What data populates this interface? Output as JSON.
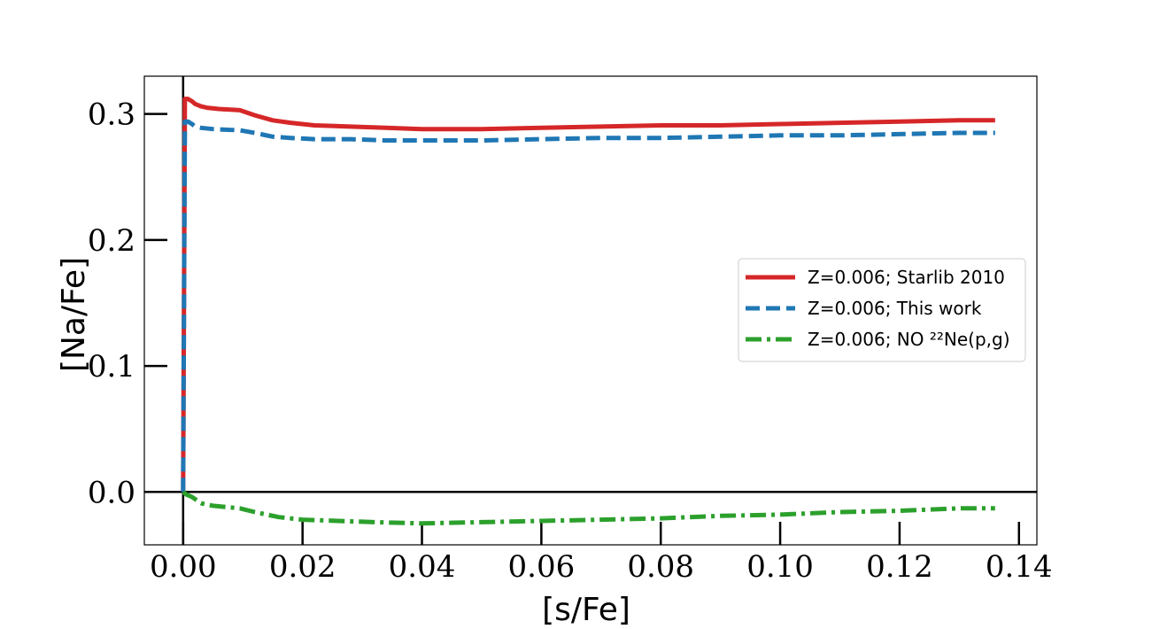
{
  "chart_data": {
    "type": "line",
    "xlabel": "[s/Fe]",
    "ylabel": "[Na/Fe]",
    "xlim": [
      -0.0065,
      0.143
    ],
    "ylim": [
      -0.042,
      0.33
    ],
    "xticks": [
      0.0,
      0.02,
      0.04,
      0.06,
      0.08,
      0.1,
      0.12,
      0.14
    ],
    "xtick_labels": [
      "0.00",
      "0.02",
      "0.04",
      "0.06",
      "0.08",
      "0.10",
      "0.12",
      "0.14"
    ],
    "yticks": [
      0.0,
      0.1,
      0.2,
      0.3
    ],
    "ytick_labels": [
      "0.0",
      "0.1",
      "0.2",
      "0.3"
    ],
    "reference_lines": {
      "x": 0.0,
      "y": 0.0
    },
    "legend_position": "center-right",
    "grid": false,
    "series": [
      {
        "name": "Z=0.006; Starlib 2010",
        "color": "#d62728",
        "style": "solid",
        "x": [
          0.0,
          0.0003,
          0.0008,
          0.0015,
          0.002,
          0.003,
          0.004,
          0.006,
          0.0095,
          0.012,
          0.015,
          0.018,
          0.022,
          0.028,
          0.034,
          0.04,
          0.05,
          0.06,
          0.07,
          0.08,
          0.09,
          0.1,
          0.11,
          0.12,
          0.13,
          0.136
        ],
        "y": [
          0.0,
          0.312,
          0.312,
          0.31,
          0.308,
          0.306,
          0.305,
          0.304,
          0.303,
          0.299,
          0.295,
          0.293,
          0.291,
          0.29,
          0.289,
          0.288,
          0.288,
          0.289,
          0.29,
          0.291,
          0.291,
          0.292,
          0.293,
          0.294,
          0.295,
          0.295
        ]
      },
      {
        "name": "Z=0.006; This work",
        "color": "#1f77b4",
        "style": "dashed",
        "x": [
          0.0,
          0.0003,
          0.0008,
          0.0015,
          0.002,
          0.003,
          0.005,
          0.0095,
          0.012,
          0.015,
          0.018,
          0.022,
          0.028,
          0.034,
          0.04,
          0.05,
          0.06,
          0.07,
          0.08,
          0.09,
          0.1,
          0.11,
          0.12,
          0.13,
          0.136
        ],
        "y": [
          0.0,
          0.294,
          0.294,
          0.292,
          0.29,
          0.289,
          0.288,
          0.287,
          0.285,
          0.282,
          0.281,
          0.28,
          0.28,
          0.279,
          0.279,
          0.279,
          0.28,
          0.281,
          0.281,
          0.282,
          0.283,
          0.283,
          0.284,
          0.285,
          0.285
        ]
      },
      {
        "name": "Z=0.006; NO ²²Ne(p,g)",
        "color": "#2ca02c",
        "style": "dashdot",
        "x": [
          0.0,
          0.0005,
          0.0015,
          0.003,
          0.005,
          0.0095,
          0.012,
          0.016,
          0.02,
          0.026,
          0.032,
          0.04,
          0.05,
          0.06,
          0.07,
          0.08,
          0.09,
          0.1,
          0.11,
          0.12,
          0.13,
          0.136
        ],
        "y": [
          0.0,
          -0.002,
          -0.004,
          -0.009,
          -0.011,
          -0.013,
          -0.016,
          -0.02,
          -0.022,
          -0.023,
          -0.024,
          -0.025,
          -0.024,
          -0.023,
          -0.022,
          -0.021,
          -0.019,
          -0.018,
          -0.016,
          -0.015,
          -0.013,
          -0.013
        ]
      }
    ]
  }
}
